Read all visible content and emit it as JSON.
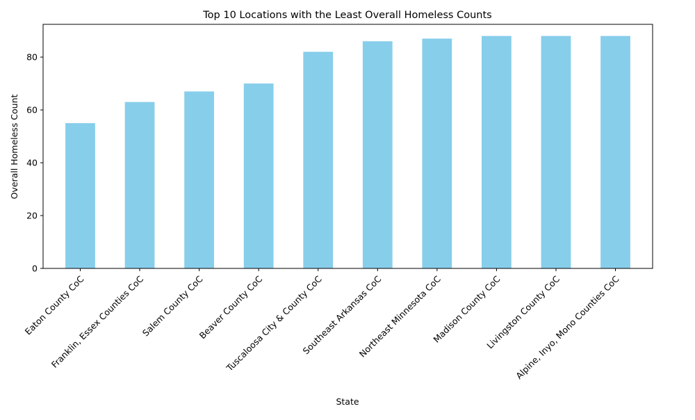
{
  "chart_data": {
    "type": "bar",
    "title": "Top 10 Locations with the Least Overall Homeless Counts",
    "xlabel": "State",
    "ylabel": "Overall Homeless Count",
    "categories": [
      "Eaton County CoC",
      "Franklin, Essex Counties CoC",
      "Salem County CoC",
      "Beaver County CoC",
      "Tuscaloosa City & County CoC",
      "Southeast Arkansas CoC",
      "Northeast Minnesota CoC",
      "Madison County CoC",
      "Livingston County CoC",
      "Alpine, Inyo, Mono Counties CoC"
    ],
    "values": [
      55,
      63,
      67,
      70,
      82,
      86,
      87,
      88,
      88,
      88
    ],
    "ylim": [
      0,
      92.4
    ],
    "yticks": [
      "0",
      "20",
      "40",
      "60",
      "80"
    ],
    "bar_color": "#87ceeb",
    "grid": false,
    "legend": "none"
  }
}
